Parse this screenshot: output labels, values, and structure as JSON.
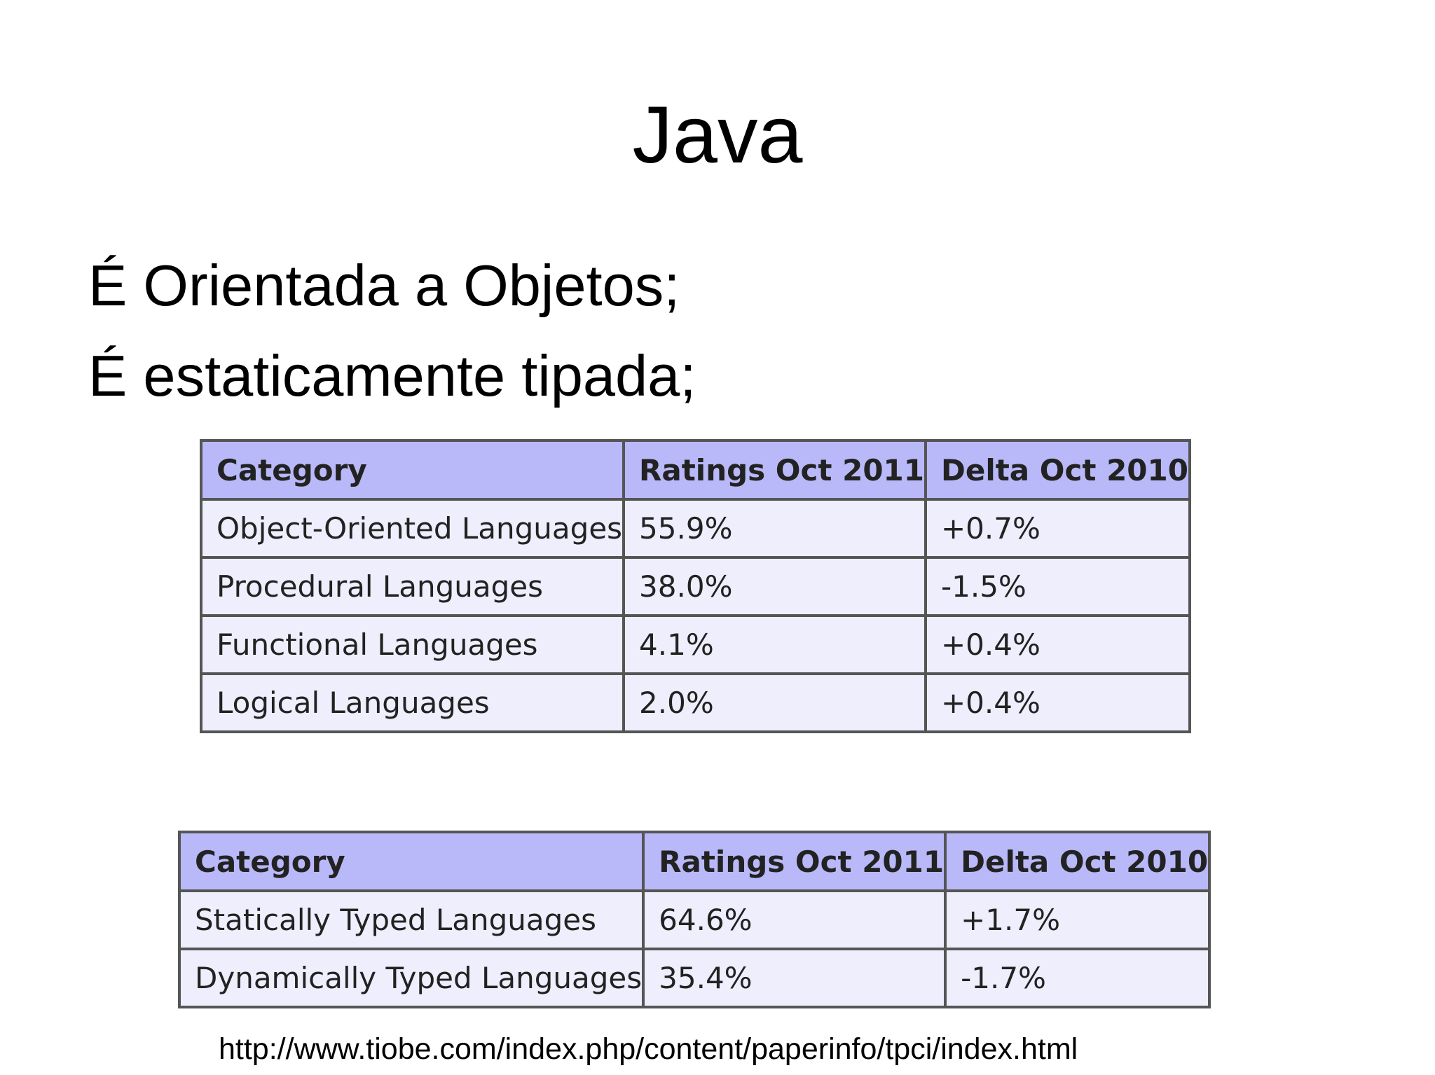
{
  "slide": {
    "title": "Java",
    "bullets": [
      "É Orientada a Objetos;",
      "É estaticamente tipada;"
    ]
  },
  "paradigm_table": {
    "headers": [
      "Category",
      "Ratings Oct 2011",
      "Delta Oct 2010"
    ],
    "rows": [
      [
        "Object-Oriented Languages",
        "55.9%",
        "+0.7%"
      ],
      [
        "Procedural Languages",
        "38.0%",
        "-1.5%"
      ],
      [
        "Functional Languages",
        "4.1%",
        "+0.4%"
      ],
      [
        "Logical Languages",
        "2.0%",
        "+0.4%"
      ]
    ]
  },
  "typing_table": {
    "headers": [
      "Category",
      "Ratings Oct 2011",
      "Delta Oct 2010"
    ],
    "rows": [
      [
        "Statically Typed Languages",
        "64.6%",
        "+1.7%"
      ],
      [
        "Dynamically Typed Languages",
        "35.4%",
        "-1.7%"
      ]
    ]
  },
  "source": {
    "url": "http://www.tiobe.com/index.php/content/paperinfo/tpci/index.html"
  }
}
